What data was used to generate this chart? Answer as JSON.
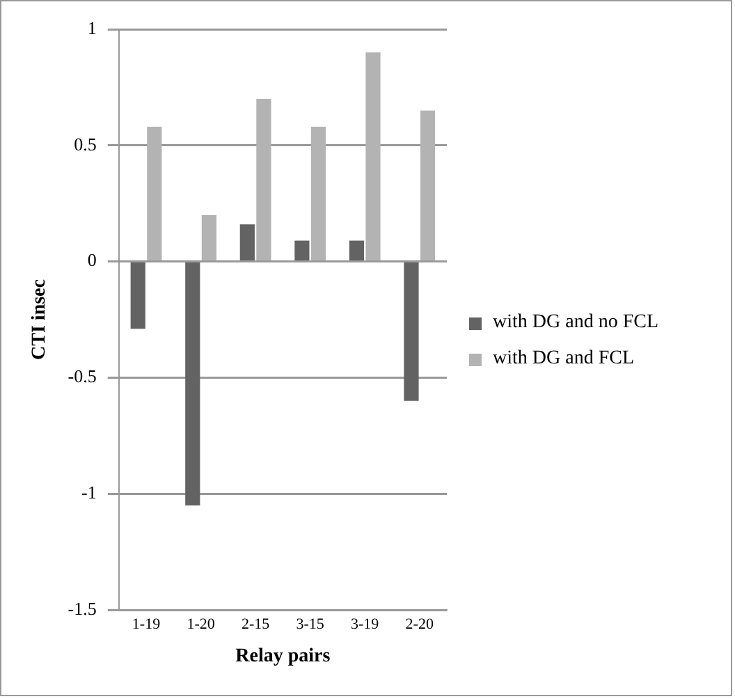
{
  "chart_data": {
    "type": "bar",
    "xlabel": "Relay pairs",
    "ylabel": "CTI insec",
    "categories": [
      "1-19",
      "1-20",
      "2-15",
      "3-15",
      "3-19",
      "2-20"
    ],
    "series": [
      {
        "name": "with DG and no FCL",
        "color": "#636363",
        "values": [
          -0.29,
          -1.05,
          0.16,
          0.09,
          0.09,
          -0.6
        ]
      },
      {
        "name": "with DG and FCL",
        "color": "#b3b3b3",
        "values": [
          0.58,
          0.2,
          0.7,
          0.58,
          0.9,
          0.65
        ]
      }
    ],
    "ylim": [
      -1.5,
      1
    ],
    "yticks": [
      -1.5,
      -1,
      -0.5,
      0,
      0.5,
      1
    ],
    "grid": "y",
    "legend": "right"
  }
}
